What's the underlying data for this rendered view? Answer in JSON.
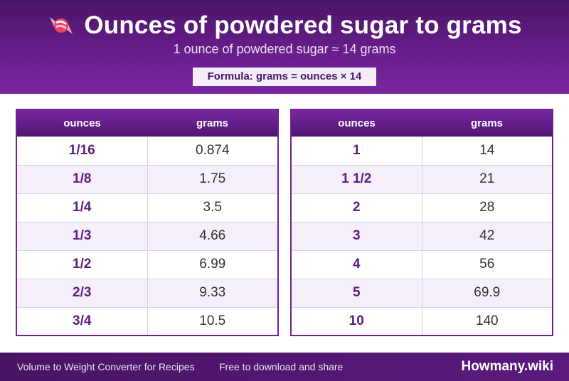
{
  "header": {
    "title": "Ounces of powdered sugar to grams",
    "subtitle": "1 ounce of powdered sugar ≈ 14 grams",
    "formula": "Formula: grams = ounces × 14",
    "icon": "candy-icon"
  },
  "tables": {
    "left": {
      "col_ounces": "ounces",
      "col_grams": "grams",
      "rows": [
        {
          "ounces": "1/16",
          "grams": "0.874"
        },
        {
          "ounces": "1/8",
          "grams": "1.75"
        },
        {
          "ounces": "1/4",
          "grams": "3.5"
        },
        {
          "ounces": "1/3",
          "grams": "4.66"
        },
        {
          "ounces": "1/2",
          "grams": "6.99"
        },
        {
          "ounces": "2/3",
          "grams": "9.33"
        },
        {
          "ounces": "3/4",
          "grams": "10.5"
        }
      ]
    },
    "right": {
      "col_ounces": "ounces",
      "col_grams": "grams",
      "rows": [
        {
          "ounces": "1",
          "grams": "14"
        },
        {
          "ounces": "1 1/2",
          "grams": "21"
        },
        {
          "ounces": "2",
          "grams": "28"
        },
        {
          "ounces": "3",
          "grams": "42"
        },
        {
          "ounces": "4",
          "grams": "56"
        },
        {
          "ounces": "5",
          "grams": "69.9"
        },
        {
          "ounces": "10",
          "grams": "140"
        }
      ]
    }
  },
  "footer": {
    "left_text": "Volume to Weight Converter for Recipes",
    "mid_text": "Free to download and share",
    "brand": "Howmany.wiki"
  },
  "colors": {
    "primary": "#6a1f8e",
    "dark": "#4a1466",
    "row_alt": "#f5effa"
  }
}
